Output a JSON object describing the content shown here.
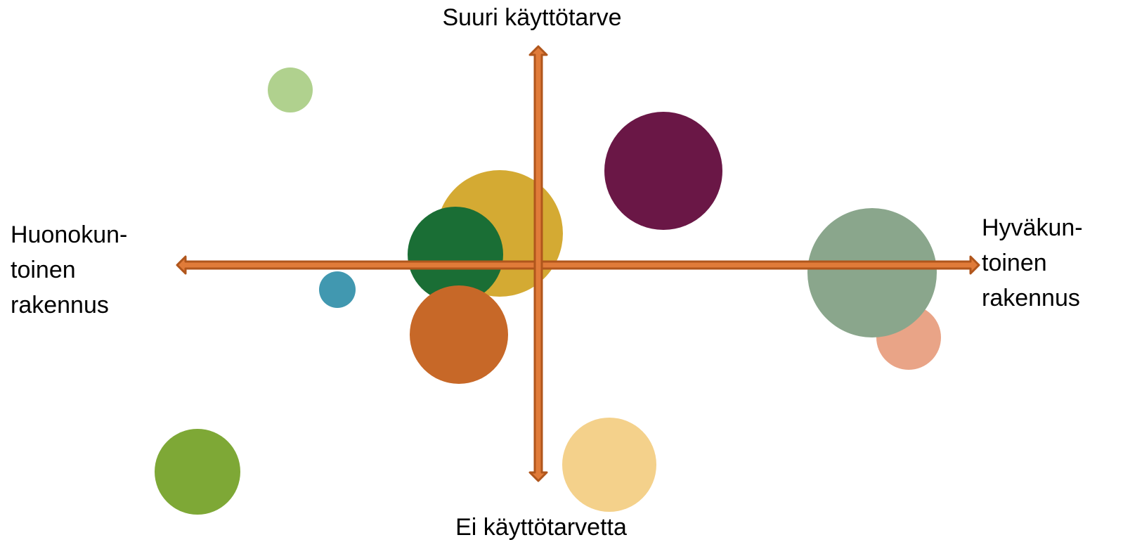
{
  "top_label": "Suuri käyttötarve",
  "bottom_label": "Ei käyttötarvetta",
  "left_label": [
    "Huonokun-",
    "toinen",
    "rakennus"
  ],
  "right_label": [
    "Hyväkun-",
    "toinen",
    "rakennus"
  ]
}
